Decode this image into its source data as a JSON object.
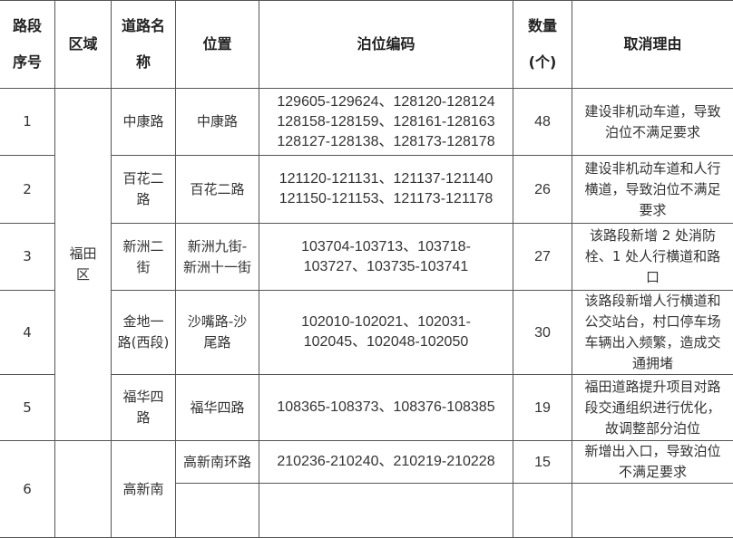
{
  "headers": {
    "seq": [
      "路段",
      "序号"
    ],
    "district": "区域",
    "road": [
      "道路名",
      "称"
    ],
    "location": "位置",
    "codes": "泊位编码",
    "count": [
      "数量",
      "(个)"
    ],
    "reason": "取消理由"
  },
  "district_futian": "福田区",
  "rows": [
    {
      "seq": "1",
      "road": "中康路",
      "location": "中康路",
      "codes": [
        "129605-129624、128120-128124",
        "128158-128159、128161-128163",
        "128127-128138、128173-128178"
      ],
      "count": "48",
      "reason": "建设非机动车道，导致泊位不满足要求"
    },
    {
      "seq": "2",
      "road": "百花二路",
      "location": "百花二路",
      "codes": [
        "121120-121131、121137-121140",
        "121150-121153、121173-121178"
      ],
      "count": "26",
      "reason": "建设非机动车道和人行横道，导致泊位不满足要求"
    },
    {
      "seq": "3",
      "road": "新洲二街",
      "location": "新洲九街-新洲十一街",
      "codes": [
        "103704-103713、103718-",
        "103727、103735-103741"
      ],
      "count": "27",
      "reason": "该路段新增 2 处消防栓、1 处人行横道和路口"
    },
    {
      "seq": "4",
      "road": "金地一路(西段)",
      "location": "沙嘴路-沙尾路",
      "codes": [
        "102010-102021、102031-",
        "102045、102048-102050"
      ],
      "count": "30",
      "reason": "该路段新增人行横道和公交站台，村口停车场车辆出入频繁，造成交通拥堵"
    },
    {
      "seq": "5",
      "road": "福华四路",
      "location": "福华四路",
      "codes": [
        "108365-108373、108376-108385"
      ],
      "count": "19",
      "reason": "福田道路提升项目对路段交通组织进行优化，故调整部分泊位"
    },
    {
      "seq": "6",
      "road": "高新南",
      "location": "高新南环路",
      "codes": [
        "210236-210240、210219-210228"
      ],
      "count": "15",
      "reason": "新增出入口，导致泊位不满足要求"
    }
  ]
}
